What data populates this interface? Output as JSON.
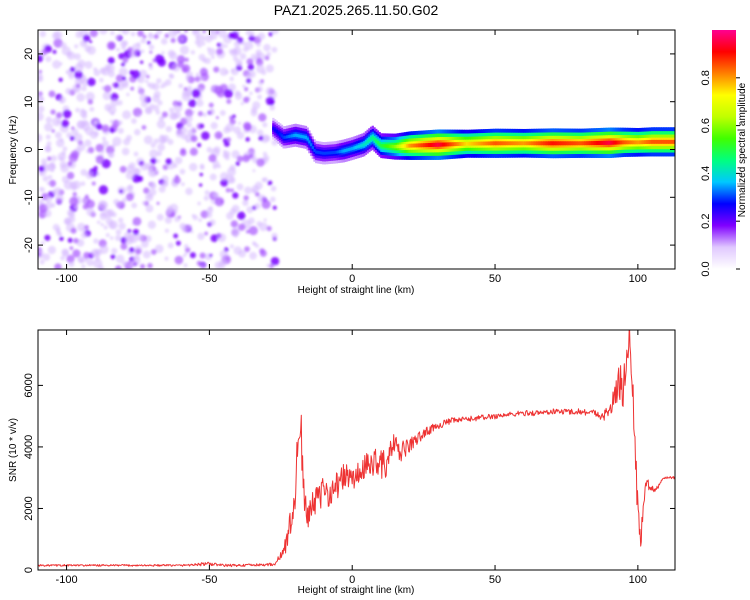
{
  "figure": {
    "title": "PAZ1.2025.265.11.50.G02"
  },
  "chart_data": [
    {
      "type": "heatmap",
      "xlabel": "Height of straight line (km)",
      "ylabel": "Frequency (Hz)",
      "xlim": [
        -110,
        113
      ],
      "ylim": [
        -25,
        25
      ],
      "xticks": [
        -100,
        -50,
        0,
        50,
        100
      ],
      "yticks": [
        -20,
        -10,
        0,
        10,
        20
      ],
      "colorbar": {
        "label": "Normalized spectral amplitude",
        "range": [
          0,
          1
        ],
        "ticks": [
          0.0,
          0.2,
          0.4,
          0.6,
          0.8
        ],
        "colormap": [
          "#ffffff",
          "#e0c8ff",
          "#8000ff",
          "#0000ff",
          "#00c8ff",
          "#00ff80",
          "#40ff00",
          "#c0ff00",
          "#ffff00",
          "#ff8000",
          "#ff0000",
          "#ff0090"
        ]
      },
      "noise_region": {
        "x": [
          -110,
          -27
        ],
        "y": [
          -25,
          25
        ],
        "level": 0.15
      },
      "ridge": {
        "x": [
          -28,
          -24,
          -20,
          -16,
          -13,
          -10,
          -6,
          -3,
          0,
          4,
          7,
          10,
          15,
          20,
          30,
          40,
          50,
          60,
          70,
          80,
          90,
          95,
          100,
          105,
          113
        ],
        "y": [
          4.5,
          2.5,
          3.0,
          2.5,
          -0.5,
          -0.8,
          -0.6,
          -0.3,
          0.2,
          1.0,
          2.5,
          0.8,
          0.6,
          0.8,
          1.0,
          1.2,
          1.3,
          1.3,
          1.3,
          1.3,
          1.4,
          1.5,
          1.5,
          1.6,
          1.6
        ],
        "amplitude": [
          0.25,
          0.3,
          0.35,
          0.35,
          0.3,
          0.3,
          0.3,
          0.35,
          0.35,
          0.4,
          0.45,
          0.5,
          0.6,
          0.8,
          0.95,
          0.75,
          0.85,
          0.8,
          0.9,
          0.85,
          0.95,
          0.85,
          0.8,
          0.85,
          0.85
        ]
      }
    },
    {
      "type": "line",
      "xlabel": "Height of straight line (km)",
      "ylabel": "SNR (10 * v/v)",
      "xlim": [
        -110,
        113
      ],
      "ylim": [
        0,
        7800
      ],
      "xticks": [
        -100,
        -50,
        0,
        50,
        100
      ],
      "yticks": [
        0,
        2000,
        4000,
        6000
      ],
      "color": "#ee3333",
      "series": [
        {
          "x": [
            -110,
            -60,
            -50,
            -45,
            -40,
            -35,
            -30,
            -27,
            -25,
            -23,
            -21,
            -20,
            -19,
            -18,
            -17,
            -16,
            -14,
            -12,
            -10,
            -8,
            -5,
            -2,
            0,
            3,
            6,
            9,
            12,
            14,
            16,
            18,
            22,
            26,
            30,
            35,
            40,
            45,
            50,
            55,
            60,
            65,
            70,
            75,
            80,
            85,
            88,
            90,
            92,
            94,
            95,
            96,
            97,
            98,
            99,
            100,
            101,
            102,
            104,
            106,
            108,
            110,
            113
          ],
          "y": [
            150,
            150,
            200,
            150,
            150,
            160,
            170,
            200,
            450,
            900,
            1800,
            2600,
            3800,
            4800,
            2800,
            1500,
            2400,
            2200,
            2600,
            2500,
            2800,
            3100,
            2900,
            3200,
            3400,
            3600,
            3300,
            4100,
            3800,
            3900,
            4200,
            4500,
            4700,
            4850,
            4900,
            4950,
            5000,
            5050,
            5100,
            5100,
            5150,
            5150,
            5150,
            5100,
            5000,
            5200,
            5600,
            6200,
            5800,
            6900,
            7700,
            6000,
            4300,
            1800,
            900,
            2400,
            2800,
            2500,
            2900,
            3000,
            3000
          ],
          "noise_amplitude": [
            30,
            30,
            60,
            40,
            40,
            40,
            40,
            60,
            150,
            300,
            600,
            800,
            900,
            900,
            700,
            500,
            500,
            500,
            450,
            450,
            450,
            450,
            400,
            450,
            450,
            500,
            500,
            500,
            400,
            300,
            200,
            150,
            120,
            100,
            90,
            90,
            90,
            90,
            90,
            90,
            90,
            90,
            100,
            120,
            150,
            250,
            500,
            700,
            700,
            800,
            600,
            600,
            700,
            500,
            300,
            400,
            200,
            100,
            60,
            40,
            40
          ]
        }
      ]
    }
  ]
}
